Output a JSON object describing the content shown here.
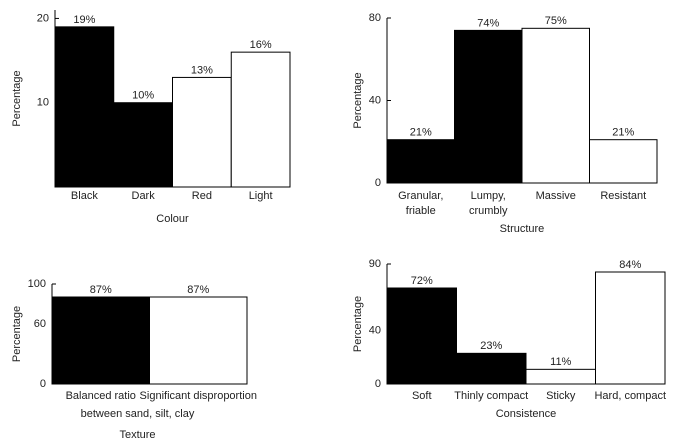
{
  "chart_data": [
    {
      "type": "bar",
      "xlabel": "Colour",
      "ylabel": "Percentage",
      "categories": [
        "Black",
        "Dark",
        "Red",
        "Light"
      ],
      "values": [
        19,
        10,
        13,
        16
      ],
      "value_labels": [
        "19%",
        "10%",
        "13%",
        "16%"
      ],
      "colors": [
        "#000000",
        "#000000",
        "#ffffff",
        "#ffffff"
      ],
      "ylim": [
        0,
        21
      ],
      "yticks": [
        10,
        20
      ]
    },
    {
      "type": "bar",
      "xlabel": "Structure",
      "ylabel": "Percentage",
      "categories": [
        [
          "Granular,",
          "friable"
        ],
        [
          "Lumpy,",
          "crumbly"
        ],
        [
          "Massive"
        ],
        [
          "Resistant"
        ]
      ],
      "values": [
        21,
        74,
        75,
        21
      ],
      "value_labels": [
        "21%",
        "74%",
        "75%",
        "21%"
      ],
      "colors": [
        "#000000",
        "#000000",
        "#ffffff",
        "#ffffff"
      ],
      "ylim": [
        0,
        80
      ],
      "yticks": [
        0,
        40,
        80
      ]
    },
    {
      "type": "bar",
      "xlabel": "Texture",
      "xlabel_note": "between sand, silt, clay",
      "ylabel": "Percentage",
      "categories": [
        "Balanced ratio",
        "Significant disproportion"
      ],
      "values": [
        87,
        87
      ],
      "value_labels": [
        "87%",
        "87%"
      ],
      "colors": [
        "#000000",
        "#ffffff"
      ],
      "ylim": [
        0,
        100
      ],
      "yticks": [
        0,
        60,
        100
      ]
    },
    {
      "type": "bar",
      "xlabel": "Consistence",
      "ylabel": "Percentage",
      "categories": [
        "Soft",
        "Thinly compact",
        "Sticky",
        "Hard, compact"
      ],
      "values": [
        72,
        23,
        11,
        84
      ],
      "value_labels": [
        "72%",
        "23%",
        "11%",
        "84%"
      ],
      "colors": [
        "#000000",
        "#000000",
        "#ffffff",
        "#ffffff"
      ],
      "ylim": [
        0,
        90
      ],
      "yticks": [
        0,
        40,
        90
      ]
    }
  ]
}
